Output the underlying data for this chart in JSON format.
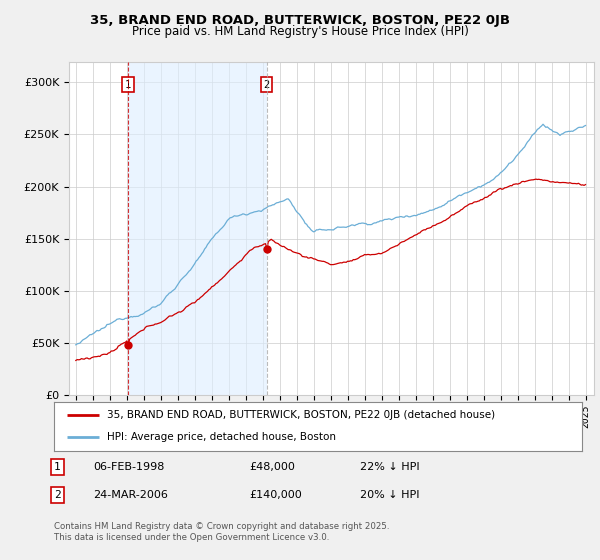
{
  "title": "35, BRAND END ROAD, BUTTERWICK, BOSTON, PE22 0JB",
  "subtitle": "Price paid vs. HM Land Registry's House Price Index (HPI)",
  "background_color": "#f0f0f0",
  "plot_bg_color": "#ffffff",
  "hpi_color": "#6baed6",
  "hpi_fill_color": "#ddeeff",
  "price_color": "#cc0000",
  "vline1_color": "#cc0000",
  "vline2_color": "#aaaaaa",
  "ylim": [
    0,
    320000
  ],
  "yticks": [
    0,
    50000,
    100000,
    150000,
    200000,
    250000,
    300000
  ],
  "ytick_labels": [
    "£0",
    "£50K",
    "£100K",
    "£150K",
    "£200K",
    "£250K",
    "£300K"
  ],
  "xstart_year": 1995,
  "xend_year": 2025,
  "sale1_year": 1998.08,
  "sale1_price": 48000,
  "sale1_label": "1",
  "sale2_year": 2006.23,
  "sale2_price": 140000,
  "sale2_label": "2",
  "legend_line1": "35, BRAND END ROAD, BUTTERWICK, BOSTON, PE22 0JB (detached house)",
  "legend_line2": "HPI: Average price, detached house, Boston",
  "footer_line1": "Contains HM Land Registry data © Crown copyright and database right 2025.",
  "footer_line2": "This data is licensed under the Open Government Licence v3.0.",
  "table1_label": "1",
  "table1_date": "06-FEB-1998",
  "table1_price": "£48,000",
  "table1_hpi": "22% ↓ HPI",
  "table2_label": "2",
  "table2_date": "24-MAR-2006",
  "table2_price": "£140,000",
  "table2_hpi": "20% ↓ HPI"
}
